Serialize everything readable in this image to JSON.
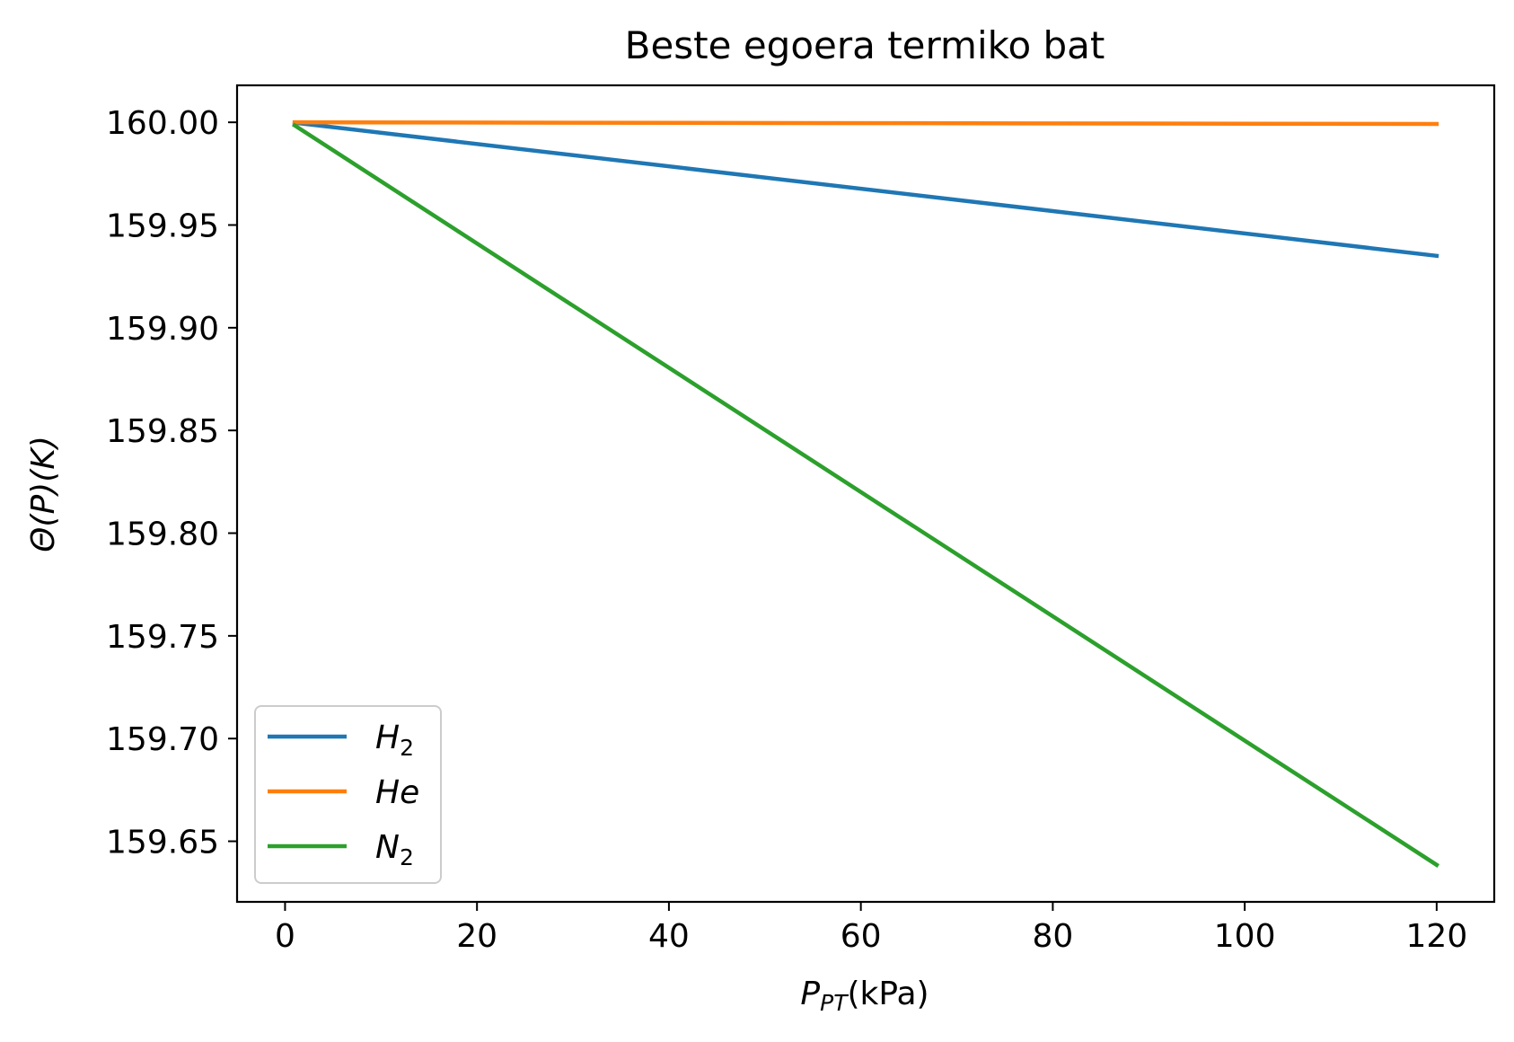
{
  "chart_data": {
    "type": "line",
    "title": "Beste egoera termiko bat",
    "xlabel": {
      "main": "P",
      "sub": "PT",
      "rest": "(kPa)"
    },
    "ylabel": "Θ(P)(K)",
    "xlim": [
      -5,
      126
    ],
    "ylim": [
      159.6205,
      160.018
    ],
    "xticks": [
      0,
      20,
      40,
      60,
      80,
      100,
      120
    ],
    "xtick_labels": [
      "0",
      "20",
      "40",
      "60",
      "80",
      "100",
      "120"
    ],
    "yticks": [
      159.65,
      159.7,
      159.75,
      159.8,
      159.85,
      159.9,
      159.95,
      160.0
    ],
    "ytick_labels": [
      "159.65",
      "159.70",
      "159.75",
      "159.80",
      "159.85",
      "159.90",
      "159.95",
      "160.00"
    ],
    "grid": false,
    "legend_position": "lower-left",
    "series": [
      {
        "name": "H",
        "name_sub": "2",
        "color": "#1f77b4",
        "x": [
          1,
          120
        ],
        "y": [
          159.9998,
          159.935
        ]
      },
      {
        "name": "He",
        "name_sub": "",
        "color": "#ff7f0e",
        "x": [
          1,
          120
        ],
        "y": [
          160.0,
          159.9992
        ]
      },
      {
        "name": "N",
        "name_sub": "2",
        "color": "#2ca02c",
        "x": [
          1,
          120
        ],
        "y": [
          159.9985,
          159.6385
        ]
      }
    ]
  }
}
